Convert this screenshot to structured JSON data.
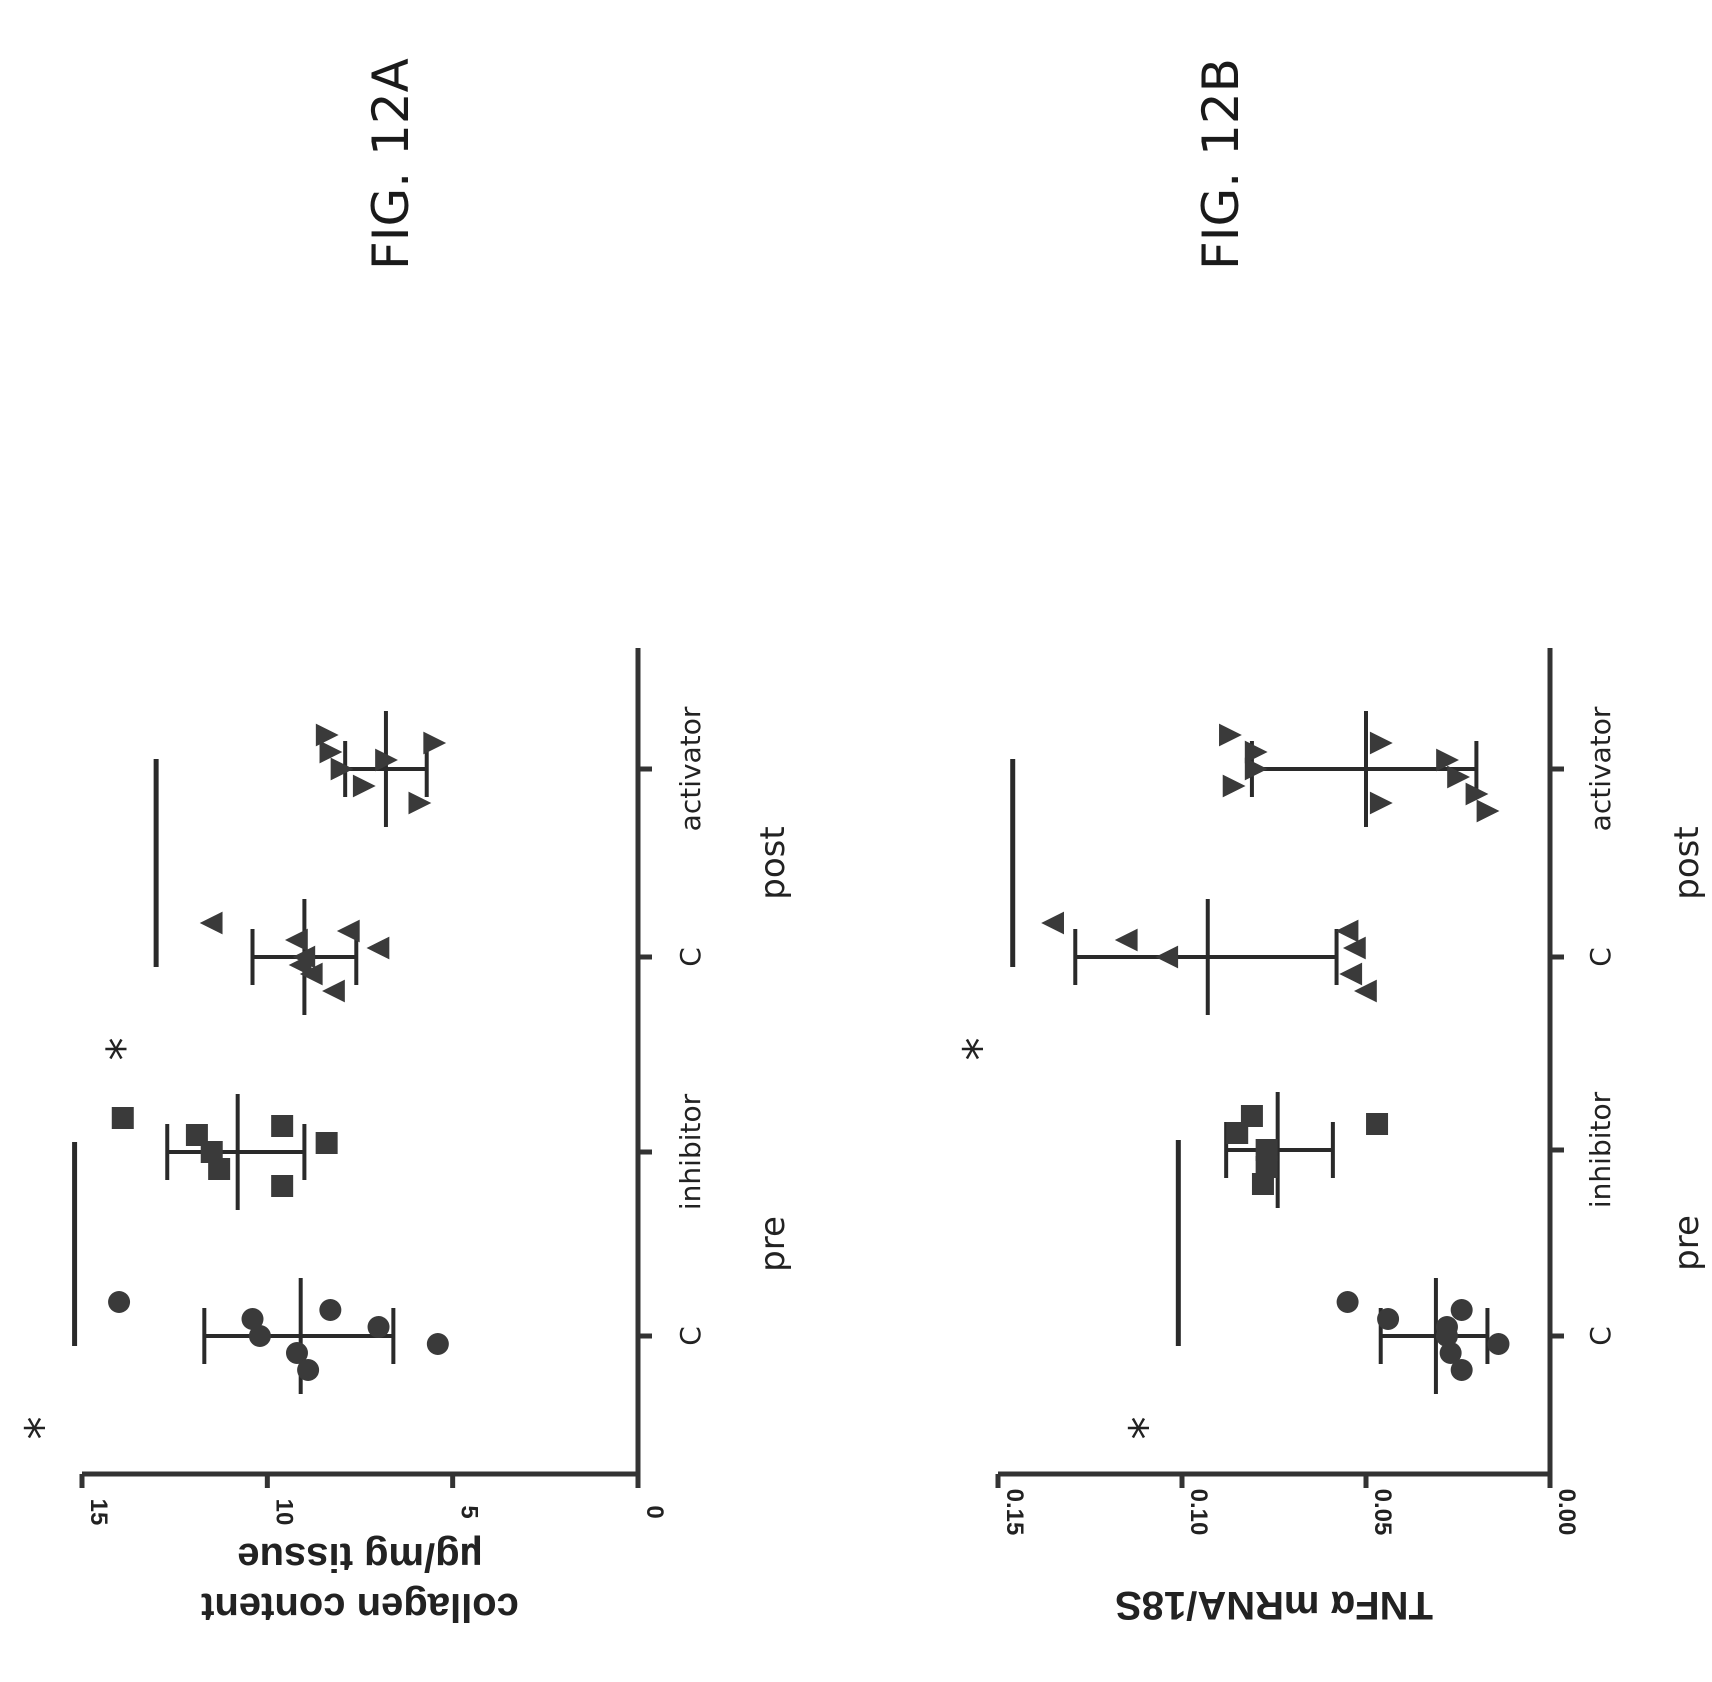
{
  "chart_data": [
    {
      "figure_label": "FIG. 12A",
      "type": "scatter",
      "ylabel_line1": "collagen content",
      "ylabel_line2": "µg/mg tissue",
      "ylim": [
        0,
        15
      ],
      "yticks": [
        "0",
        "5",
        "10",
        "15"
      ],
      "yticks_values": [
        0,
        5,
        10,
        15
      ],
      "categories": [
        "C",
        "inhibitor",
        "C",
        "activator"
      ],
      "groups": [
        {
          "label": "pre",
          "categories": [
            0,
            1
          ]
        },
        {
          "label": "post",
          "categories": [
            2,
            3
          ]
        }
      ],
      "marker_shapes": [
        "circle",
        "square",
        "triangle-up",
        "triangle-down"
      ],
      "series": [
        {
          "category": "C",
          "group": "pre",
          "points": [
            14.0,
            10.4,
            10.2,
            9.2,
            8.9,
            8.3,
            7.0,
            5.4
          ],
          "mean": 9.1,
          "err_low": 6.6,
          "err_high": 11.7
        },
        {
          "category": "inhibitor",
          "group": "pre",
          "points": [
            13.9,
            11.9,
            11.5,
            11.3,
            9.6,
            9.6,
            8.4
          ],
          "mean": 10.8,
          "err_low": 9.0,
          "err_high": 12.7
        },
        {
          "category": "C",
          "group": "post",
          "points": [
            11.5,
            9.2,
            9.0,
            8.8,
            8.2,
            7.8,
            7.0,
            9.1
          ],
          "mean": 9.0,
          "err_low": 7.6,
          "err_high": 10.4
        },
        {
          "category": "activator",
          "group": "post",
          "points": [
            8.4,
            8.3,
            8.0,
            7.4,
            5.9,
            5.5,
            6.8
          ],
          "mean": 6.8,
          "err_low": 5.7,
          "err_high": 7.9
        }
      ],
      "significance": [
        {
          "label": "*",
          "value": 15.2,
          "from_category": 0,
          "to_category": 1
        },
        {
          "label": "*",
          "value": 13.0,
          "from_category": 2,
          "to_category": 3
        }
      ]
    },
    {
      "figure_label": "FIG. 12B",
      "type": "scatter",
      "ylabel_line1": "TNFα mRNA/18S",
      "ylim": [
        0,
        0.15
      ],
      "yticks": [
        "0.00",
        "0.05",
        "0.10",
        "0.15"
      ],
      "yticks_values": [
        0,
        0.05,
        0.1,
        0.15
      ],
      "categories": [
        "C",
        "inhibitor",
        "C",
        "activator"
      ],
      "groups": [
        {
          "label": "pre",
          "categories": [
            0,
            1
          ]
        },
        {
          "label": "post",
          "categories": [
            2,
            3
          ]
        }
      ],
      "marker_shapes": [
        "circle",
        "square",
        "triangle-up",
        "triangle-down"
      ],
      "series": [
        {
          "category": "C",
          "group": "pre",
          "points": [
            0.055,
            0.044,
            0.028,
            0.027,
            0.024,
            0.024,
            0.028,
            0.014
          ],
          "mean": 0.031,
          "err_low": 0.017,
          "err_high": 0.046
        },
        {
          "category": "inhibitor",
          "group": "pre",
          "points": [
            0.081,
            0.085,
            0.077,
            0.077,
            0.078,
            0.047
          ],
          "mean": 0.074,
          "err_low": 0.059,
          "err_high": 0.088
        },
        {
          "category": "C",
          "group": "post",
          "points": [
            0.135,
            0.115,
            0.104,
            0.054,
            0.05,
            0.055,
            0.053
          ],
          "mean": 0.093,
          "err_low": 0.058,
          "err_high": 0.129
        },
        {
          "category": "activator",
          "group": "post",
          "points": [
            0.087,
            0.08,
            0.08,
            0.086,
            0.046,
            0.046,
            0.028,
            0.025,
            0.02,
            0.017
          ],
          "mean": 0.05,
          "err_low": 0.02,
          "err_high": 0.081
        }
      ],
      "significance": [
        {
          "label": "*",
          "value": 0.101,
          "from_category": 0,
          "to_category": 1
        },
        {
          "label": "*",
          "value": 0.146,
          "from_category": 2,
          "to_category": 3
        }
      ]
    }
  ],
  "group_labels": [
    "pre",
    "post"
  ]
}
